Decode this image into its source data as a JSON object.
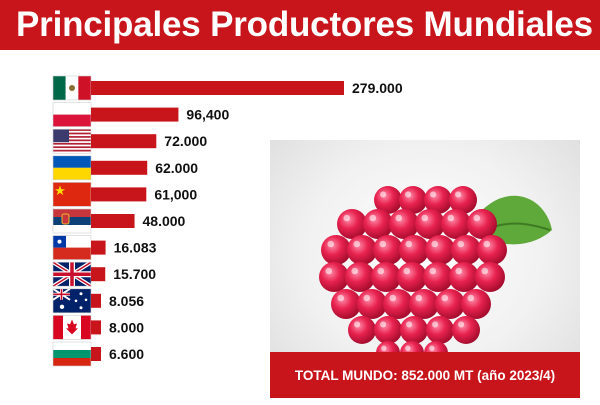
{
  "header": {
    "title": "Principales Productores Mundiales"
  },
  "total": {
    "text": "TOTAL MUNDO: 852.000 MT (año 2023/4)"
  },
  "image": {
    "icon": "raspberry-image"
  },
  "colors": {
    "accent": "#c8151b",
    "bar": "#c8151b"
  },
  "chart_data": {
    "type": "bar",
    "orientation": "horizontal",
    "categories": [
      "Mexico",
      "Poland",
      "United States",
      "Ukraine",
      "China",
      "Serbia",
      "Chile",
      "United Kingdom",
      "Australia",
      "Canada",
      "Bulgaria"
    ],
    "flags": [
      "mexico-flag",
      "poland-flag",
      "usa-flag",
      "ukraine-flag",
      "china-flag",
      "serbia-flag",
      "chile-flag",
      "uk-flag",
      "australia-flag",
      "canada-flag",
      "bulgaria-flag"
    ],
    "values": [
      279000,
      96400,
      72000,
      62000,
      61000,
      48000,
      16083,
      15700,
      8056,
      8000,
      6600
    ],
    "labels": [
      "279.000",
      "96,400",
      "72.000",
      "62.000",
      "61,000",
      "48.000",
      "16.083",
      "15.700",
      "8.056",
      "8.000",
      "6.600"
    ],
    "title": "",
    "xlabel": "",
    "ylabel": "",
    "grid": false,
    "legend": "none"
  }
}
